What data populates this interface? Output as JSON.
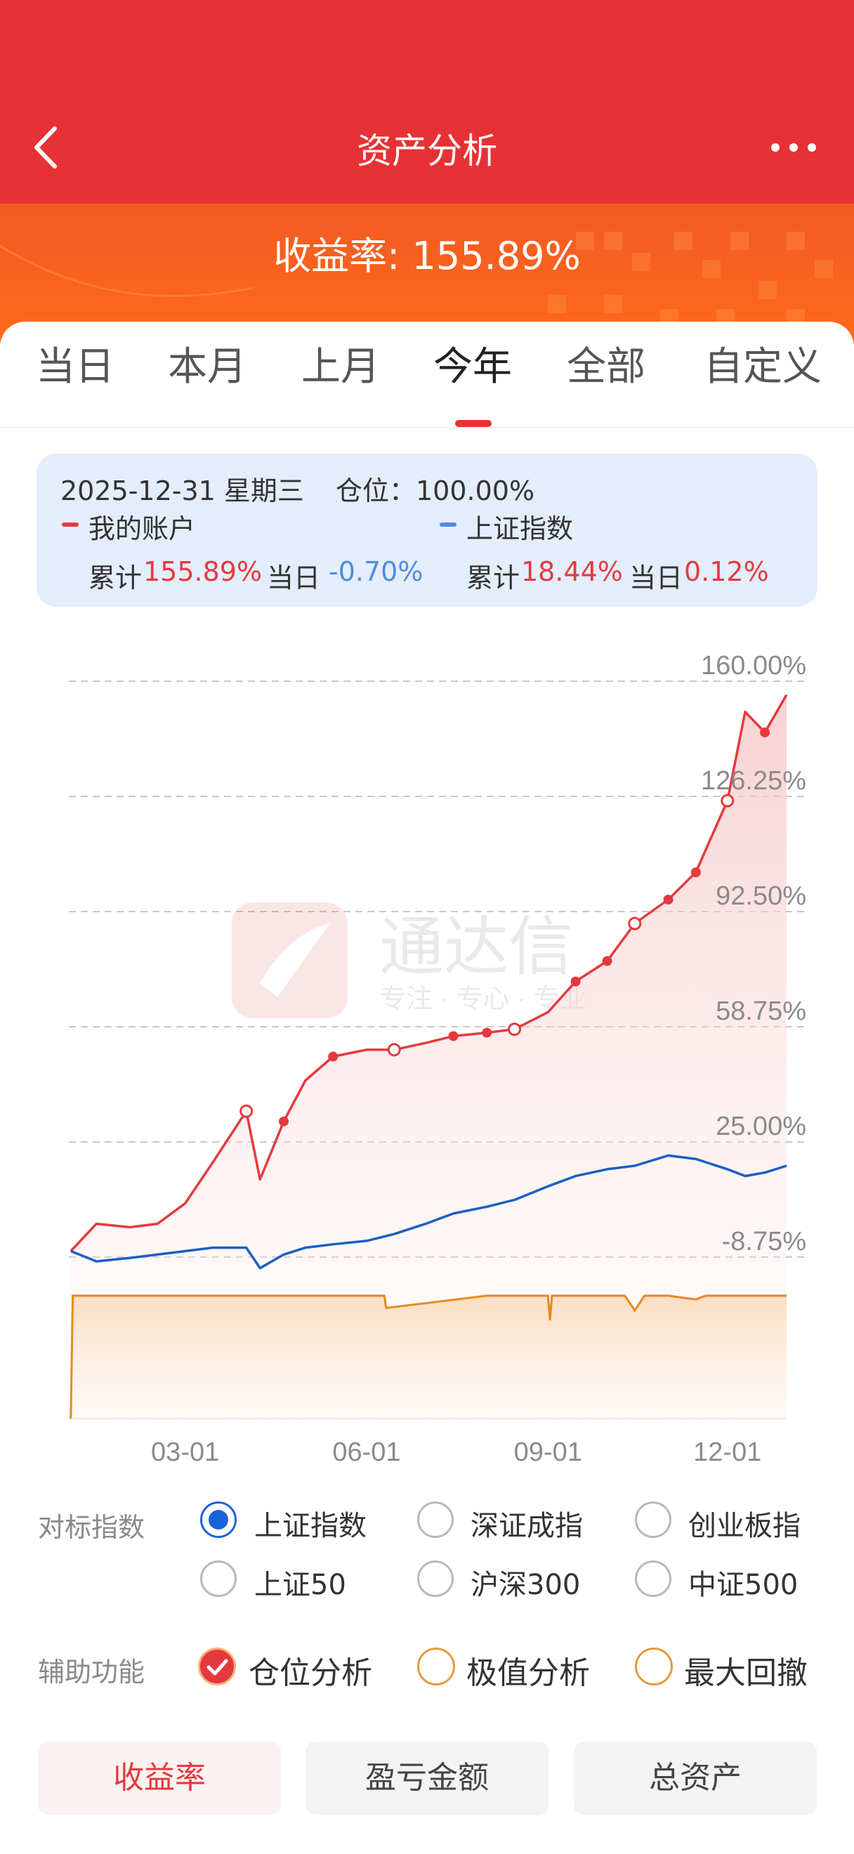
{
  "header": {
    "title": "资产分析",
    "back_icon": "chevron-left-icon",
    "more_icon": "more-dots-icon"
  },
  "banner": {
    "return_text": "收益率: 155.89%"
  },
  "tabs": [
    {
      "label": "当日"
    },
    {
      "label": "本月"
    },
    {
      "label": "上月"
    },
    {
      "label": "今年",
      "active": true
    },
    {
      "label": "全部"
    },
    {
      "label": "自定义"
    }
  ],
  "info": {
    "date_line": "2025-12-31 星期三",
    "position_label": "仓位：100.00%",
    "my_account_label": "我的账户",
    "index_label": "上证指数",
    "cum_label": "累计",
    "day_label": "当日",
    "my_cum": "155.89%",
    "my_day": "-0.70%",
    "idx_cum": "18.44%",
    "idx_day": "0.12%"
  },
  "chart_data": {
    "type": "line",
    "title": "",
    "xlabel": "",
    "ylabel": "",
    "y_tick_labels": [
      "160.00%",
      "126.25%",
      "92.50%",
      "58.75%",
      "25.00%",
      "-8.75%"
    ],
    "x_tick_labels": [
      "03-01",
      "06-01",
      "09-01",
      "12-01"
    ],
    "ylim": [
      -8.75,
      160
    ],
    "grid": true,
    "watermark": {
      "name": "通达信",
      "slogan": "专注 · 专心 · 专业"
    },
    "series": [
      {
        "name": "我的账户",
        "color": "#e43a3f",
        "x": [
          "2025-01-02",
          "2025-01-15",
          "2025-02-01",
          "2025-02-15",
          "2025-03-01",
          "2025-03-15",
          "2025-04-01",
          "2025-04-08",
          "2025-04-20",
          "2025-05-01",
          "2025-05-15",
          "2025-06-01",
          "2025-06-15",
          "2025-07-01",
          "2025-07-15",
          "2025-08-01",
          "2025-08-15",
          "2025-09-01",
          "2025-09-15",
          "2025-10-01",
          "2025-10-15",
          "2025-11-01",
          "2025-11-15",
          "2025-12-01",
          "2025-12-10",
          "2025-12-20",
          "2025-12-31"
        ],
        "values": [
          -7,
          1,
          0,
          1,
          7,
          19,
          34,
          14,
          31,
          43,
          50,
          52,
          52,
          54,
          56,
          57,
          58,
          63,
          72,
          78,
          89,
          96,
          104,
          125,
          151,
          145,
          156
        ]
      },
      {
        "name": "上证指数",
        "color": "#1a5fc4",
        "x": [
          "2025-01-02",
          "2025-01-15",
          "2025-02-01",
          "2025-02-15",
          "2025-03-01",
          "2025-03-15",
          "2025-04-01",
          "2025-04-08",
          "2025-04-20",
          "2025-05-01",
          "2025-05-15",
          "2025-06-01",
          "2025-06-15",
          "2025-07-01",
          "2025-07-15",
          "2025-08-01",
          "2025-08-15",
          "2025-09-01",
          "2025-09-15",
          "2025-10-01",
          "2025-10-15",
          "2025-11-01",
          "2025-11-15",
          "2025-12-01",
          "2025-12-10",
          "2025-12-20",
          "2025-12-31"
        ],
        "values": [
          -7,
          -10,
          -9,
          -8,
          -7,
          -6,
          -6,
          -12,
          -8,
          -6,
          -5,
          -4,
          -2,
          1,
          4,
          6,
          8,
          12,
          15,
          17,
          18,
          21,
          20,
          17,
          15,
          16,
          18
        ]
      }
    ],
    "position_series": {
      "name": "仓位",
      "color": "#e8891c",
      "x": [
        "2025-01-02",
        "2025-01-03",
        "2025-06-01",
        "2025-06-10",
        "2025-06-11",
        "2025-08-01",
        "2025-09-01",
        "2025-09-02",
        "2025-09-03",
        "2025-10-10",
        "2025-10-15",
        "2025-10-20",
        "2025-11-01",
        "2025-11-15",
        "2025-11-20",
        "2025-12-31"
      ],
      "values": [
        0,
        100,
        100,
        100,
        90,
        100,
        100,
        80,
        100,
        100,
        88,
        100,
        100,
        97,
        100,
        100
      ]
    }
  },
  "benchmark": {
    "label": "对标指数",
    "options": [
      {
        "label": "上证指数",
        "selected": true
      },
      {
        "label": "深证成指",
        "selected": false
      },
      {
        "label": "创业板指",
        "selected": false
      },
      {
        "label": "上证50",
        "selected": false
      },
      {
        "label": "沪深300",
        "selected": false
      },
      {
        "label": "中证500",
        "selected": false
      }
    ]
  },
  "aux": {
    "label": "辅助功能",
    "options": [
      {
        "label": "仓位分析",
        "checked": true
      },
      {
        "label": "极值分析",
        "checked": false
      },
      {
        "label": "最大回撤",
        "checked": false
      }
    ]
  },
  "bottom_tabs": [
    {
      "label": "收益率",
      "active": true
    },
    {
      "label": "盈亏金额",
      "active": false
    },
    {
      "label": "总资产",
      "active": false
    }
  ]
}
